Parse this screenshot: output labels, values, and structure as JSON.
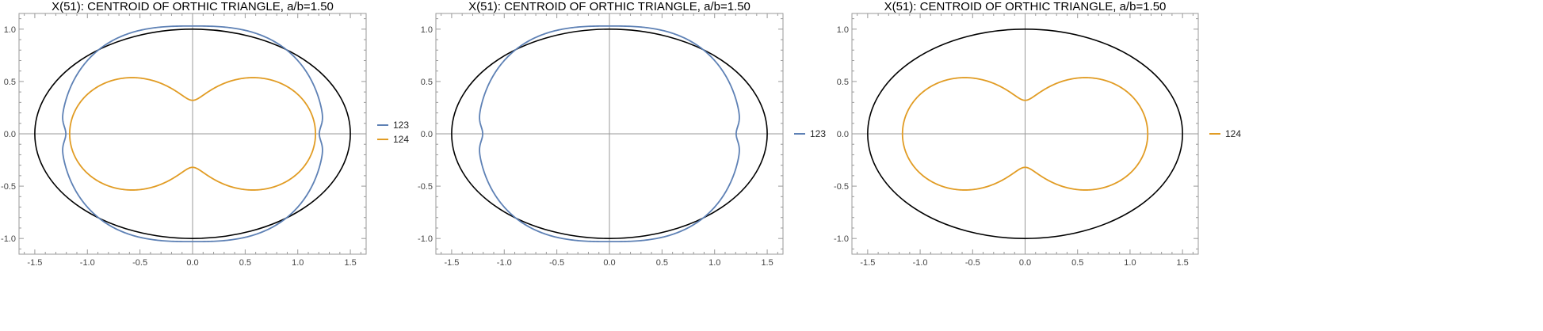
{
  "chart_data": [
    {
      "type": "line",
      "title": "X(51): CENTROID OF ORTHIC TRIANGLE, a/b=1.50",
      "xlim": [
        -1.65,
        1.65
      ],
      "ylim": [
        -1.15,
        1.15
      ],
      "xticks": [
        "-1.5",
        "-1.0",
        "-0.5",
        "0.0",
        "0.5",
        "1.0",
        "1.5"
      ],
      "yticks": [
        "1.0",
        "0.5",
        "0.0",
        "-0.5",
        "-1.0"
      ],
      "ellipse": {
        "a": 1.5,
        "b": 1.0,
        "color": "#000000"
      },
      "legend_position": "right",
      "series": [
        {
          "name": "123",
          "color": "#5e81b5",
          "curve": "outer-ellipse-like locus, max |x|=1.27, max |y|=1.03, notched at x=±1.22"
        },
        {
          "name": "124",
          "color": "#e19c24",
          "curve": "figure-of-eight locus with inner loops, extent |x|≤1.23, |y|≤0.72"
        }
      ]
    },
    {
      "type": "line",
      "title": "X(51): CENTROID OF ORTHIC TRIANGLE, a/b=1.50",
      "xlim": [
        -1.65,
        1.65
      ],
      "ylim": [
        -1.15,
        1.15
      ],
      "xticks": [
        "-1.5",
        "-1.0",
        "-0.5",
        "0.0",
        "0.5",
        "1.0",
        "1.5"
      ],
      "yticks": [
        "1.0",
        "0.5",
        "0.0",
        "-0.5",
        "-1.0"
      ],
      "ellipse": {
        "a": 1.5,
        "b": 1.0,
        "color": "#000000"
      },
      "legend_position": "right",
      "series": [
        {
          "name": "123",
          "color": "#5e81b5",
          "curve": "outer-ellipse-like locus, max |x|=1.27, max |y|=1.03, notched at x=±1.22"
        }
      ]
    },
    {
      "type": "line",
      "title": "X(51): CENTROID OF ORTHIC TRIANGLE, a/b=1.50",
      "xlim": [
        -1.65,
        1.65
      ],
      "ylim": [
        -1.15,
        1.15
      ],
      "xticks": [
        "-1.5",
        "-1.0",
        "-0.5",
        "0.0",
        "0.5",
        "1.0",
        "1.5"
      ],
      "yticks": [
        "1.0",
        "0.5",
        "0.0",
        "-0.5",
        "-1.0"
      ],
      "ellipse": {
        "a": 1.5,
        "b": 1.0,
        "color": "#000000"
      },
      "legend_position": "right",
      "series": [
        {
          "name": "124",
          "color": "#e19c24",
          "curve": "figure-of-eight locus with inner loops, extent |x|≤1.23, |y|≤0.72"
        }
      ]
    }
  ]
}
